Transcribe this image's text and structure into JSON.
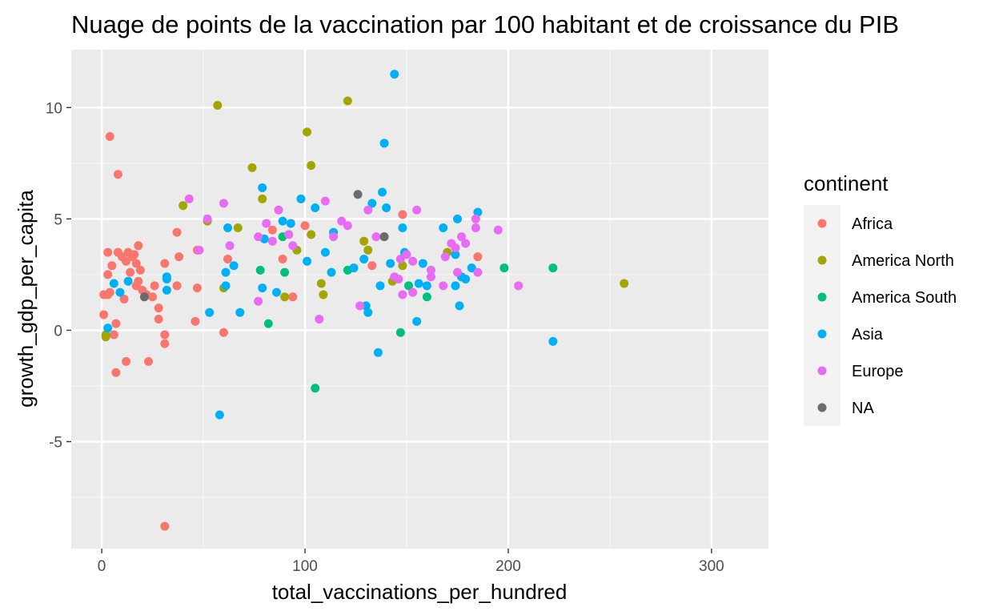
{
  "chart_data": {
    "type": "scatter",
    "title": "Nuage de points de la vaccination par 100 habitant et de croissance du PIB",
    "xlabel": "total_vaccinations_per_hundred",
    "ylabel": "growth_gdp_per_capita",
    "xlim": [
      -15,
      328
    ],
    "ylim": [
      -9.8,
      12.6
    ],
    "x_ticks": [
      0,
      100,
      200,
      300
    ],
    "x_tick_labels": [
      "0",
      "100",
      "200",
      "300"
    ],
    "y_ticks": [
      -5,
      0,
      5,
      10
    ],
    "y_tick_labels": [
      "-5",
      "0",
      "5",
      "10"
    ],
    "x_minor_ticks": [
      50,
      150,
      250
    ],
    "y_minor_ticks": [
      -7.5,
      -2.5,
      2.5,
      7.5
    ],
    "grid": true,
    "legend_position": "right",
    "legend_title": "continent",
    "series": [
      {
        "name": "Africa",
        "color": "#F8766D",
        "points": [
          [
            4,
            8.7
          ],
          [
            8,
            7.0
          ],
          [
            1,
            1.6
          ],
          [
            1,
            0.7
          ],
          [
            3,
            1.6
          ],
          [
            3,
            2.5
          ],
          [
            4,
            1.7
          ],
          [
            5,
            2.9
          ],
          [
            3,
            3.5
          ],
          [
            8,
            3.5
          ],
          [
            6,
            -0.2
          ],
          [
            7,
            0.3
          ],
          [
            7,
            -1.9
          ],
          [
            10,
            3.3
          ],
          [
            11,
            1.4
          ],
          [
            12,
            -1.4
          ],
          [
            12,
            3.1
          ],
          [
            13,
            3.5
          ],
          [
            14,
            2.6
          ],
          [
            15,
            3.3
          ],
          [
            16,
            3.4
          ],
          [
            17,
            2.0
          ],
          [
            17,
            3.0
          ],
          [
            18,
            2.2
          ],
          [
            18,
            3.8
          ],
          [
            19,
            2.7
          ],
          [
            20,
            1.8
          ],
          [
            22,
            1.6
          ],
          [
            23,
            -1.4
          ],
          [
            25,
            1.5
          ],
          [
            26,
            2.0
          ],
          [
            28,
            1.0
          ],
          [
            28,
            0.5
          ],
          [
            31,
            -0.2
          ],
          [
            31,
            -0.6
          ],
          [
            31,
            3.0
          ],
          [
            31,
            -8.8
          ],
          [
            37,
            2.0
          ],
          [
            37,
            4.4
          ],
          [
            38,
            3.3
          ],
          [
            46,
            0.4
          ],
          [
            47,
            3.6
          ],
          [
            47,
            1.9
          ],
          [
            60,
            -0.1
          ],
          [
            62,
            3.2
          ],
          [
            84,
            4.5
          ],
          [
            89,
            3.2
          ],
          [
            94,
            1.5
          ],
          [
            100,
            4.7
          ],
          [
            133,
            2.9
          ],
          [
            148,
            5.2
          ],
          [
            185,
            3.3
          ]
        ]
      },
      {
        "name": "America North",
        "color": "#A3A500",
        "points": [
          [
            2,
            -0.2
          ],
          [
            2,
            -0.3
          ],
          [
            40,
            5.6
          ],
          [
            52,
            4.9
          ],
          [
            57,
            10.1
          ],
          [
            60,
            1.9
          ],
          [
            67,
            4.6
          ],
          [
            74,
            7.3
          ],
          [
            79,
            5.9
          ],
          [
            90,
            1.5
          ],
          [
            96,
            3.6
          ],
          [
            101,
            8.9
          ],
          [
            103,
            7.4
          ],
          [
            103,
            4.3
          ],
          [
            108,
            2.1
          ],
          [
            109,
            1.6
          ],
          [
            121,
            10.3
          ],
          [
            129,
            4.0
          ],
          [
            131,
            3.6
          ],
          [
            139,
            4.2
          ],
          [
            143,
            2.2
          ],
          [
            148,
            2.9
          ],
          [
            170,
            3.5
          ],
          [
            257,
            2.1
          ]
        ]
      },
      {
        "name": "America South",
        "color": "#00BF7D",
        "points": [
          [
            78,
            2.7
          ],
          [
            82,
            0.3
          ],
          [
            89,
            4.2
          ],
          [
            90,
            2.6
          ],
          [
            105,
            -2.6
          ],
          [
            121,
            2.7
          ],
          [
            147,
            -0.1
          ],
          [
            151,
            2.0
          ],
          [
            160,
            1.5
          ],
          [
            198,
            2.8
          ],
          [
            222,
            2.8
          ]
        ]
      },
      {
        "name": "Asia",
        "color": "#00B0F6",
        "points": [
          [
            3,
            0.1
          ],
          [
            6,
            2.1
          ],
          [
            9,
            1.7
          ],
          [
            13,
            2.2
          ],
          [
            32,
            2.4
          ],
          [
            32,
            1.8
          ],
          [
            32,
            2.3
          ],
          [
            53,
            0.8
          ],
          [
            58,
            -3.8
          ],
          [
            61,
            2.6
          ],
          [
            61,
            2.0
          ],
          [
            62,
            4.6
          ],
          [
            65,
            2.9
          ],
          [
            68,
            0.8
          ],
          [
            79,
            6.4
          ],
          [
            79,
            1.9
          ],
          [
            80,
            4.1
          ],
          [
            86,
            1.7
          ],
          [
            89,
            4.9
          ],
          [
            93,
            4.8
          ],
          [
            98,
            5.9
          ],
          [
            101,
            3.1
          ],
          [
            105,
            5.5
          ],
          [
            110,
            3.5
          ],
          [
            113,
            2.6
          ],
          [
            114,
            4.4
          ],
          [
            124,
            2.8
          ],
          [
            129,
            3.2
          ],
          [
            130,
            1.1
          ],
          [
            131,
            0.8
          ],
          [
            133,
            5.7
          ],
          [
            136,
            -1.0
          ],
          [
            137,
            2.0
          ],
          [
            138,
            6.2
          ],
          [
            139,
            8.4
          ],
          [
            140,
            5.5
          ],
          [
            142,
            3.0
          ],
          [
            144,
            11.5
          ],
          [
            148,
            4.6
          ],
          [
            149,
            3.5
          ],
          [
            155,
            0.4
          ],
          [
            156,
            2.1
          ],
          [
            158,
            3.0
          ],
          [
            160,
            2.0
          ],
          [
            168,
            4.6
          ],
          [
            174,
            3.4
          ],
          [
            174,
            2.0
          ],
          [
            175,
            5.0
          ],
          [
            176,
            1.1
          ],
          [
            177,
            2.4
          ],
          [
            179,
            2.3
          ],
          [
            182,
            2.8
          ],
          [
            185,
            5.3
          ],
          [
            222,
            -0.5
          ]
        ]
      },
      {
        "name": "Europe",
        "color": "#E76BF3",
        "points": [
          [
            43,
            5.9
          ],
          [
            48,
            3.6
          ],
          [
            52,
            5.0
          ],
          [
            60,
            5.7
          ],
          [
            63,
            3.8
          ],
          [
            77,
            1.3
          ],
          [
            77,
            4.2
          ],
          [
            81,
            4.8
          ],
          [
            84,
            4.0
          ],
          [
            87,
            5.4
          ],
          [
            92,
            4.3
          ],
          [
            94,
            3.8
          ],
          [
            107,
            0.5
          ],
          [
            110,
            5.8
          ],
          [
            114,
            4.2
          ],
          [
            118,
            4.9
          ],
          [
            121,
            4.7
          ],
          [
            127,
            1.1
          ],
          [
            131,
            5.4
          ],
          [
            135,
            4.2
          ],
          [
            144,
            2.4
          ],
          [
            146,
            2.3
          ],
          [
            147,
            3.2
          ],
          [
            148,
            1.6
          ],
          [
            150,
            3.4
          ],
          [
            153,
            1.7
          ],
          [
            153,
            3.1
          ],
          [
            155,
            5.4
          ],
          [
            162,
            2.7
          ],
          [
            162,
            2.4
          ],
          [
            168,
            2.0
          ],
          [
            169,
            3.3
          ],
          [
            172,
            3.9
          ],
          [
            174,
            3.7
          ],
          [
            175,
            2.6
          ],
          [
            177,
            4.2
          ],
          [
            179,
            3.9
          ],
          [
            184,
            4.6
          ],
          [
            184,
            5.0
          ],
          [
            185,
            2.6
          ],
          [
            195,
            4.5
          ],
          [
            205,
            2.0
          ]
        ]
      },
      {
        "name": "NA",
        "color": "#6B6B6B",
        "points": [
          [
            21,
            1.5
          ],
          [
            126,
            6.1
          ],
          [
            139,
            4.2
          ]
        ]
      }
    ]
  }
}
